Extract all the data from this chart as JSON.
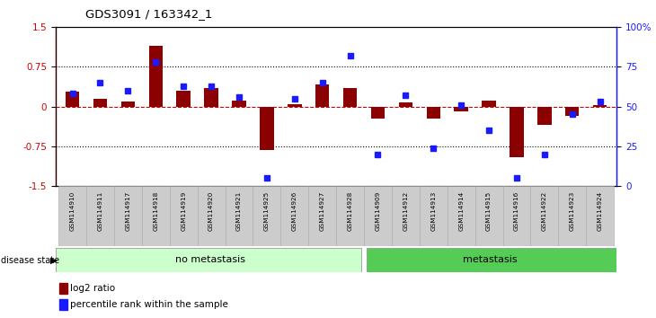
{
  "title": "GDS3091 / 163342_1",
  "samples": [
    "GSM114910",
    "GSM114911",
    "GSM114917",
    "GSM114918",
    "GSM114919",
    "GSM114920",
    "GSM114921",
    "GSM114925",
    "GSM114926",
    "GSM114927",
    "GSM114928",
    "GSM114909",
    "GSM114912",
    "GSM114913",
    "GSM114914",
    "GSM114915",
    "GSM114916",
    "GSM114922",
    "GSM114923",
    "GSM114924"
  ],
  "log2_ratio": [
    0.28,
    0.15,
    0.1,
    1.15,
    0.3,
    0.35,
    0.12,
    -0.82,
    0.05,
    0.42,
    0.35,
    -0.22,
    0.07,
    -0.22,
    -0.1,
    0.12,
    -0.95,
    -0.35,
    -0.18,
    0.03
  ],
  "percentile_rank": [
    58,
    65,
    60,
    78,
    63,
    63,
    56,
    5,
    55,
    65,
    82,
    20,
    57,
    24,
    51,
    35,
    5,
    20,
    45,
    53
  ],
  "no_metastasis_count": 11,
  "metastasis_count": 9,
  "bar_color": "#8B0000",
  "dot_color": "#1a1aff",
  "ylim_left": [
    -1.5,
    1.5
  ],
  "ylim_right": [
    0,
    100
  ],
  "yticks_left": [
    -1.5,
    -0.75,
    0,
    0.75,
    1.5
  ],
  "ytick_labels_left": [
    "-1.5",
    "-0.75",
    "0",
    "0.75",
    "1.5"
  ],
  "yticks_right": [
    0,
    25,
    50,
    75,
    100
  ],
  "ytick_labels_right": [
    "0",
    "25",
    "50",
    "75",
    "100%"
  ],
  "hline_color": "#CC0000",
  "no_metastasis_color": "#ccffcc",
  "metastasis_color": "#55cc55",
  "label_log2": "log2 ratio",
  "label_percentile": "percentile rank within the sample"
}
